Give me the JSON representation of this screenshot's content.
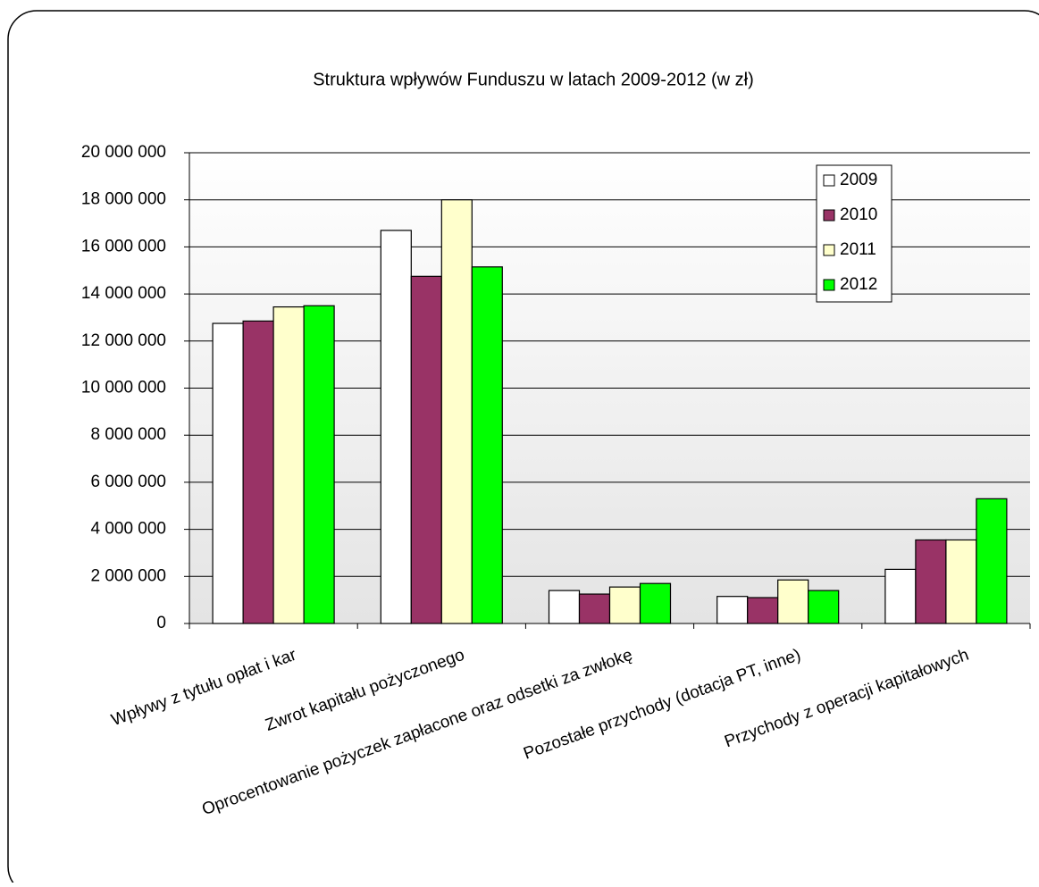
{
  "chart_data": {
    "type": "bar",
    "title": "Struktura wpływów Funduszu w latach 2009-2012 (w zł)",
    "categories": [
      "Wpływy z tytułu opłat i kar",
      "Zwrot kapitału pożyczonego",
      "Oprocentowanie pożyczek  zapłacone oraz odsetki za zwłokę",
      "Pozostałe przychody  (dotacja PT, inne)",
      "Przychody z operacji kapitałowych"
    ],
    "series": [
      {
        "name": "2009",
        "color": "#ffffff",
        "values": [
          12750000,
          16700000,
          1400000,
          1150000,
          2300000
        ]
      },
      {
        "name": "2010",
        "color": "#993366",
        "values": [
          12850000,
          14750000,
          1250000,
          1100000,
          3550000
        ]
      },
      {
        "name": "2011",
        "color": "#ffffcc",
        "values": [
          13450000,
          18000000,
          1550000,
          1850000,
          3550000
        ]
      },
      {
        "name": "2012",
        "color": "#00ff00",
        "values": [
          13500000,
          15150000,
          1700000,
          1400000,
          5300000
        ]
      }
    ],
    "ylim": [
      0,
      20000000
    ],
    "yticks": [
      0,
      {
        "value": 2000000,
        "label": "2 000 000"
      },
      {
        "value": 4000000,
        "label": "4 000 000"
      },
      {
        "value": 6000000,
        "label": "6 000 000"
      },
      {
        "value": 8000000,
        "label": "8 000 000"
      },
      {
        "value": 10000000,
        "label": "10 000 000"
      },
      {
        "value": 12000000,
        "label": "12 000 000"
      },
      {
        "value": 14000000,
        "label": "14 000 000"
      },
      {
        "value": 16000000,
        "label": "16 000 000"
      },
      {
        "value": 18000000,
        "label": "18 000 000"
      },
      {
        "value": 20000000,
        "label": "20 000 000"
      }
    ],
    "grid": true,
    "legend": "upper right"
  }
}
